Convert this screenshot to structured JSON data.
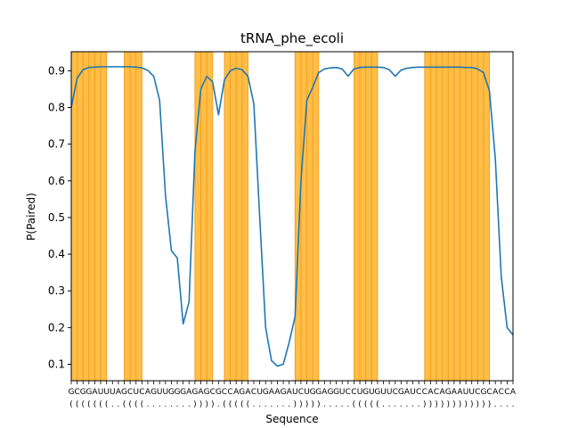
{
  "chart_data": {
    "type": "line",
    "title": "tRNA_phe_ecoli",
    "xlabel": "Sequence",
    "ylabel": "P(Paired)",
    "ylim": [
      0.055,
      0.952
    ],
    "xlim": [
      0,
      75
    ],
    "yticks": [
      "0.1",
      "0.2",
      "0.3",
      "0.4",
      "0.5",
      "0.6",
      "0.7",
      "0.8",
      "0.9"
    ],
    "sequence": "GCGGAUUUAGCUCAGUUGGGAGAGCGCCAGACUGAAGAUCUGGAGGUCCUGUGUUCGAUCCACAGAAUUCGCACCA",
    "structure": "(((((((..((((........)))).(((((.......))))).....(((((.......))))))))))))....",
    "series": [
      {
        "name": "",
        "color": "#1f77b4",
        "x": [
          0,
          1,
          2,
          3,
          4,
          5,
          6,
          7,
          8,
          9,
          10,
          11,
          12,
          13,
          14,
          15,
          16,
          17,
          18,
          19,
          20,
          21,
          22,
          23,
          24,
          25,
          26,
          27,
          28,
          29,
          30,
          31,
          32,
          33,
          34,
          35,
          36,
          37,
          38,
          39,
          40,
          41,
          42,
          43,
          44,
          45,
          46,
          47,
          48,
          49,
          50,
          51,
          52,
          53,
          54,
          55,
          56,
          57,
          58,
          59,
          60,
          61,
          62,
          63,
          64,
          65,
          66,
          67,
          68,
          69,
          70,
          71,
          72,
          73,
          74,
          75
        ],
        "values": [
          0.8,
          0.88,
          0.903,
          0.909,
          0.91,
          0.911,
          0.911,
          0.911,
          0.911,
          0.911,
          0.911,
          0.91,
          0.908,
          0.901,
          0.885,
          0.82,
          0.56,
          0.41,
          0.39,
          0.21,
          0.27,
          0.68,
          0.85,
          0.885,
          0.87,
          0.78,
          0.875,
          0.9,
          0.907,
          0.903,
          0.885,
          0.81,
          0.5,
          0.2,
          0.11,
          0.095,
          0.1,
          0.16,
          0.23,
          0.6,
          0.82,
          0.855,
          0.895,
          0.905,
          0.908,
          0.909,
          0.905,
          0.885,
          0.905,
          0.909,
          0.91,
          0.91,
          0.91,
          0.909,
          0.903,
          0.885,
          0.902,
          0.907,
          0.909,
          0.91,
          0.91,
          0.91,
          0.91,
          0.91,
          0.91,
          0.91,
          0.91,
          0.909,
          0.909,
          0.905,
          0.895,
          0.845,
          0.66,
          0.34,
          0.2,
          0.18
        ]
      }
    ],
    "shaded_color": "#FFA500"
  }
}
